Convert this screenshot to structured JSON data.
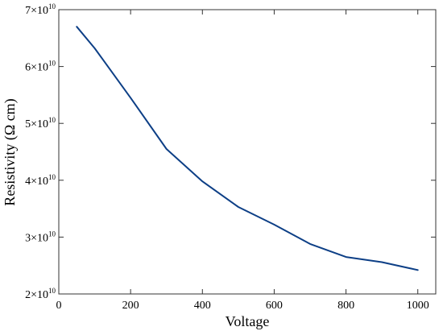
{
  "chart_data": {
    "type": "line",
    "title": "",
    "xlabel": "Voltage",
    "ylabel": "Resistivity (Ω cm)",
    "xlim": [
      0,
      1050
    ],
    "ylim": [
      20000000000.0,
      70000000000.0
    ],
    "grid": false,
    "x_ticks": [
      {
        "value": 0,
        "label": "0"
      },
      {
        "value": 200,
        "label": "200"
      },
      {
        "value": 400,
        "label": "400"
      },
      {
        "value": 600,
        "label": "600"
      },
      {
        "value": 800,
        "label": "800"
      },
      {
        "value": 1000,
        "label": "1000"
      }
    ],
    "y_ticks": [
      {
        "value": 20000000000.0,
        "mantissa": "2×10",
        "exponent": "10"
      },
      {
        "value": 30000000000.0,
        "mantissa": "3×10",
        "exponent": "10"
      },
      {
        "value": 40000000000.0,
        "mantissa": "4×10",
        "exponent": "10"
      },
      {
        "value": 50000000000.0,
        "mantissa": "5×10",
        "exponent": "10"
      },
      {
        "value": 60000000000.0,
        "mantissa": "6×10",
        "exponent": "10"
      },
      {
        "value": 70000000000.0,
        "mantissa": "7×10",
        "exponent": "10"
      }
    ],
    "series": [
      {
        "color": "#0d3f86",
        "x": [
          50,
          100,
          200,
          300,
          400,
          500,
          600,
          700,
          800,
          900,
          1000
        ],
        "y": [
          67000000000.0,
          63200000000.0,
          54500000000.0,
          45500000000.0,
          39800000000.0,
          35300000000.0,
          32200000000.0,
          28800000000.0,
          26500000000.0,
          25600000000.0,
          24200000000.0
        ]
      }
    ]
  }
}
